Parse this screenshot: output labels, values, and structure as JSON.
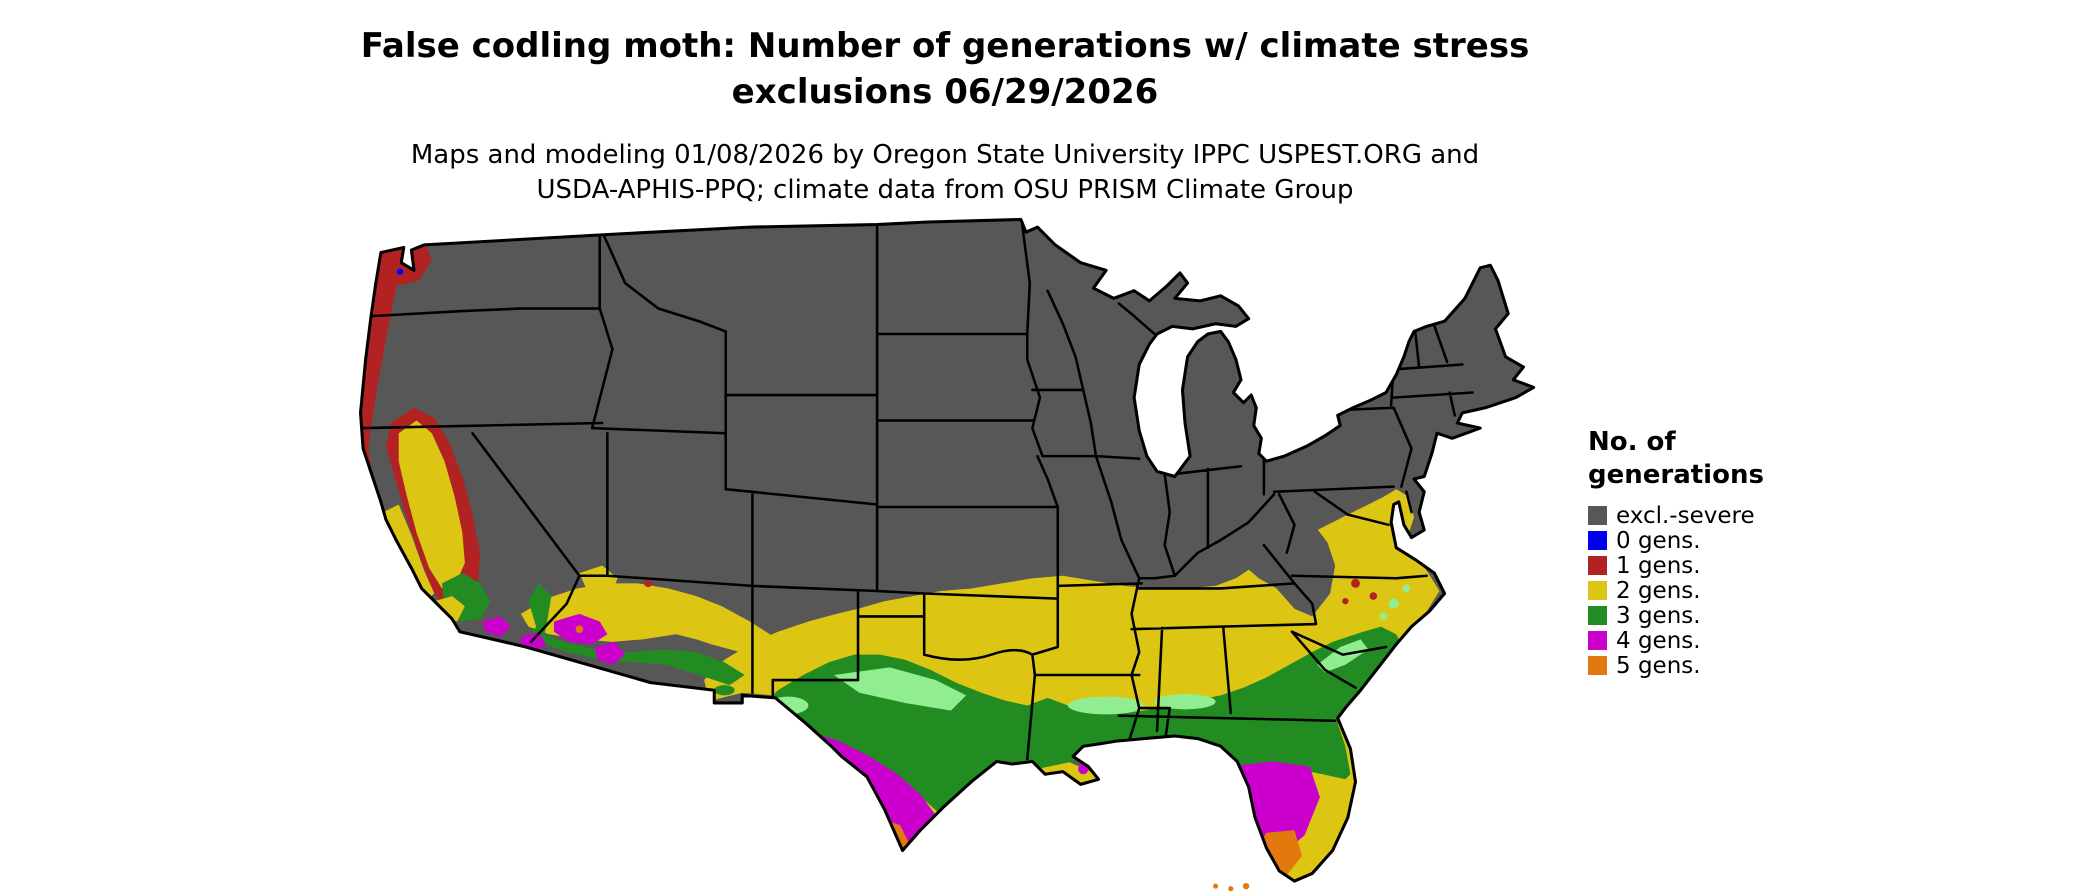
{
  "header": {
    "title_line1": "False codling moth: Number of generations w/ climate stress",
    "title_line2": "exclusions 06/29/2026",
    "subtitle_line1": "Maps and modeling 01/08/2026 by Oregon State University IPPC USPEST.ORG and",
    "subtitle_line2": "USDA-APHIS-PPQ; climate data from OSU PRISM Climate Group"
  },
  "legend": {
    "title_line1": "No. of",
    "title_line2": "generations",
    "items": [
      {
        "label": "excl.-severe",
        "color_key": "excl"
      },
      {
        "label": "0 gens.",
        "color_key": "g0"
      },
      {
        "label": "1 gens.",
        "color_key": "g1"
      },
      {
        "label": "2 gens.",
        "color_key": "g2"
      },
      {
        "label": "3 gens.",
        "color_key": "g3"
      },
      {
        "label": "4 gens.",
        "color_key": "g4"
      },
      {
        "label": "5 gens.",
        "color_key": "g5"
      }
    ]
  },
  "map": {
    "depicted_area": "contiguous United States choropleth of generation counts",
    "palette": {
      "excl": "#575757",
      "g0": "#0000ee",
      "g1": "#b22222",
      "g2": "#ddc613",
      "g3": "#228b22",
      "g3_light": "#90ee90",
      "g4": "#cc00cc",
      "g5": "#e2790e",
      "border": "#000000",
      "water": "#ffffff"
    }
  }
}
